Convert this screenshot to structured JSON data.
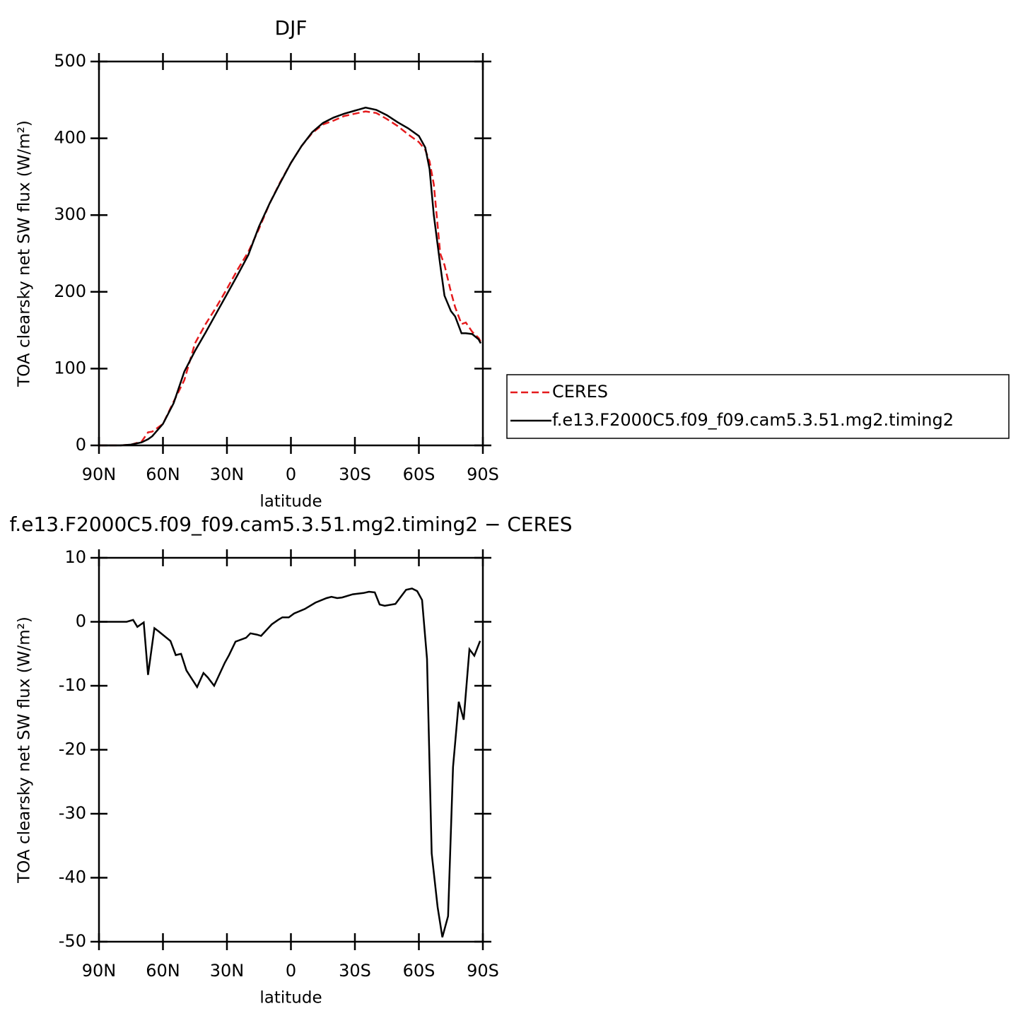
{
  "chart_data": [
    {
      "type": "line",
      "title": "DJF",
      "xlabel": "latitude",
      "ylabel": "TOA clearsky net SW flux (W/m²)",
      "x": [
        90,
        85,
        80,
        75,
        70,
        67,
        65,
        60,
        55,
        50,
        45,
        40,
        35,
        30,
        25,
        20,
        15,
        10,
        5,
        0,
        -5,
        -10,
        -15,
        -20,
        -25,
        -30,
        -35,
        -40,
        -45,
        -50,
        -55,
        -60,
        -63,
        -65,
        -67,
        -70,
        -72,
        -75,
        -77,
        -80,
        -82,
        -85,
        -88,
        -89
      ],
      "series": [
        {
          "name": "CERES",
          "color": "#e41a1c",
          "dashed": true,
          "values": [
            0,
            0,
            0,
            1,
            5,
            17,
            18,
            28,
            57,
            85,
            133,
            158,
            180,
            204,
            229,
            252,
            282,
            315,
            343,
            368,
            390,
            407,
            418,
            423,
            429,
            432,
            435,
            433,
            425,
            416,
            405,
            395,
            385,
            370,
            340,
            250,
            235,
            200,
            180,
            158,
            160,
            148,
            140,
            135
          ]
        },
        {
          "name": "f.e13.F2000C5.f09_f09.cam5.3.51.mg2.timing2",
          "color": "#000000",
          "dashed": false,
          "values": [
            0,
            0,
            0,
            1,
            4,
            8,
            12,
            28,
            55,
            96,
            123,
            147,
            172,
            197,
            222,
            248,
            285,
            315,
            342,
            368,
            390,
            408,
            420,
            427,
            432,
            436,
            440,
            437,
            430,
            421,
            413,
            403,
            388,
            360,
            300,
            235,
            195,
            175,
            168,
            146,
            146,
            145,
            138,
            133
          ]
        }
      ],
      "xlim": [
        90,
        -90
      ],
      "xticks": [
        {
          "value": 90,
          "label": "90N"
        },
        {
          "value": 60,
          "label": "60N"
        },
        {
          "value": 30,
          "label": "30N"
        },
        0,
        {
          "value": -30,
          "label": "30S"
        },
        {
          "value": -60,
          "label": "60S"
        },
        {
          "value": -90,
          "label": "90S"
        }
      ],
      "ylim": [
        0,
        500
      ],
      "yticks": [
        0,
        100,
        200,
        300,
        400,
        500
      ],
      "legend": "right"
    },
    {
      "type": "line",
      "title": "f.e13.F2000C5.f09_f09.cam5.3.51.mg2.timing2 − CERES",
      "xlabel": "latitude",
      "ylabel": "TOA clearsky net SW flux (W/m²)",
      "x": [
        90,
        77,
        74,
        72,
        69,
        67,
        64,
        62,
        56.5,
        54,
        51.5,
        49,
        44,
        41,
        39,
        36,
        31,
        29,
        26,
        21,
        19,
        16,
        14,
        9,
        6,
        4,
        1,
        -1.5,
        -6.5,
        -11.5,
        -16.7,
        -19,
        -21.7,
        -24,
        -29,
        -34,
        -36.6,
        -39.3,
        -41.6,
        -44,
        -49,
        -54,
        -56.8,
        -59.2,
        -61.5,
        -63.8,
        -66,
        -68.8,
        -71,
        -73.7,
        -76,
        -78.7,
        -81,
        -83.7,
        -86,
        -88.7
      ],
      "series": [
        {
          "name": null,
          "color": "#000000",
          "dashed": false,
          "values": [
            0,
            0,
            0.3,
            -0.8,
            -0.1,
            -8.3,
            -1.0,
            -1.5,
            -3,
            -5.2,
            -5,
            -7.6,
            -10.2,
            -8,
            -8.7,
            -10,
            -6.4,
            -5.2,
            -3.1,
            -2.5,
            -1.8,
            -2,
            -2.2,
            -0.4,
            0.3,
            0.7,
            0.7,
            1.3,
            2,
            3,
            3.7,
            3.9,
            3.7,
            3.8,
            4.3,
            4.5,
            4.7,
            4.6,
            2.7,
            2.5,
            2.8,
            5,
            5.2,
            4.8,
            3.4,
            -5.8,
            -36.2,
            -44.6,
            -49.3,
            -46,
            -22.7,
            -12.5,
            -15.3,
            -4.3,
            -5.3,
            -3
          ]
        }
      ],
      "xlim": [
        90,
        -90
      ],
      "xticks": [
        {
          "value": 90,
          "label": "90N"
        },
        {
          "value": 60,
          "label": "60N"
        },
        {
          "value": 30,
          "label": "30N"
        },
        0,
        {
          "value": -30,
          "label": "30S"
        },
        {
          "value": -60,
          "label": "60S"
        },
        {
          "value": -90,
          "label": "90S"
        }
      ],
      "ylim": [
        -50,
        10
      ],
      "yticks": [
        -50,
        -40,
        -30,
        -20,
        -10,
        0,
        10
      ]
    }
  ]
}
